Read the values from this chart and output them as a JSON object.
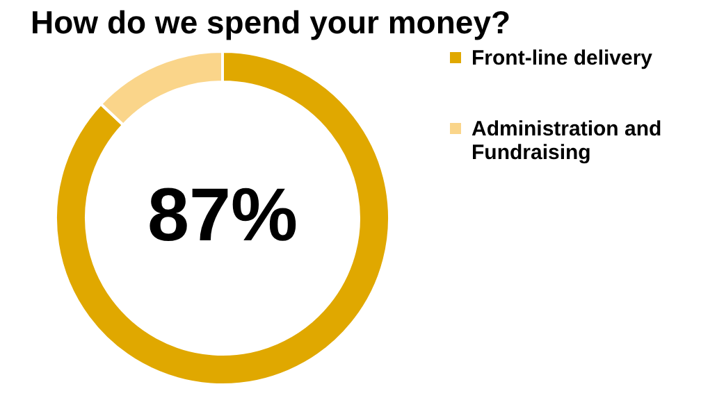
{
  "chart_data": {
    "type": "donut",
    "title": "How do we spend your money?",
    "categories": [
      "Front-line delivery",
      "Administration and Fundraising"
    ],
    "values": [
      87,
      13
    ],
    "colors": [
      "#e0a800",
      "#fad58a"
    ],
    "annotations": [
      "87%"
    ],
    "legend": "right"
  }
}
